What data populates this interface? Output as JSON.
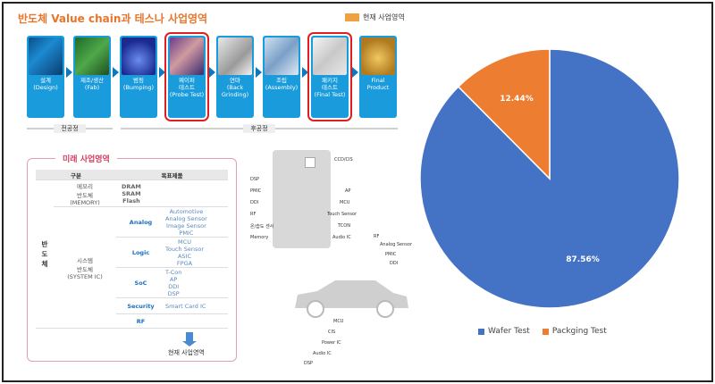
{
  "infographic": {
    "title": "반도체 Value chain과 테스나 사업영역",
    "legend_current": "현재 사업영역",
    "steps": [
      {
        "label": "설계\n(Design)",
        "icon": "design-image",
        "highlight": false
      },
      {
        "label": "제조/생산\n(Fab)",
        "icon": "fab-image",
        "highlight": false
      },
      {
        "label": "범핑\n(Bumping)",
        "icon": "bumping-image",
        "highlight": false
      },
      {
        "label": "웨이퍼\n테스트\n(Probe Test)",
        "icon": "wafer-image",
        "highlight": true
      },
      {
        "label": "연마\n(Back\nGrinding)",
        "icon": "grinding-image",
        "highlight": false
      },
      {
        "label": "조립\n(Assembly)",
        "icon": "assembly-image",
        "highlight": false
      },
      {
        "label": "패키지\n테스트\n(Final Test)",
        "icon": "package-image",
        "highlight": true
      },
      {
        "label": "Final\nProduct",
        "icon": "final-product-image",
        "highlight": false
      }
    ],
    "phase_front": "전공정",
    "phase_back": "후공정"
  },
  "future_business": {
    "title": "미래 사업영역",
    "col_category": "구분",
    "col_product": "목표제품",
    "side_label": "반\n도\n체",
    "memory_label": "메모리\n반도체\n(MEMORY)",
    "memory_products": "DRAM\nSRAM\nFlash",
    "system_label": "시스템\n반도체\n(SYSTEM IC)",
    "rows": [
      {
        "name": "Analog",
        "products": "Automotive\nAnalog Sensor\nImage Sensor\nPMIC"
      },
      {
        "name": "Logic",
        "products": "MCU\nTouch Sensor\nASIC\nFPGA"
      },
      {
        "name": "SoC",
        "products": "T-Con\nAP\nDDI\nDSP"
      },
      {
        "name": "Security",
        "products": "Smart Card IC"
      },
      {
        "name": "RF",
        "products": ""
      }
    ],
    "current_note": "현재 사업영역"
  },
  "chip_diagram": {
    "top_label": "CCD/CIS",
    "left_pins": [
      "DSP",
      "PMIC",
      "DDI",
      "RF",
      "온/습도 센서",
      "Memory"
    ],
    "right_pins": [
      "AP",
      "MCU",
      "Touch Sensor",
      "TCON",
      "Audio IC"
    ]
  },
  "car_diagram": {
    "labels": [
      "RF",
      "Analog Sensor",
      "PMIC",
      "DDI",
      "MCU",
      "CIS",
      "Power IC",
      "Audio IC",
      "DSP"
    ]
  },
  "chart_data": {
    "type": "pie",
    "title": "",
    "slices": [
      {
        "name": "Wafer Test",
        "value": 87.56,
        "label": "87.56%",
        "color": "#4472C4"
      },
      {
        "name": "Packging Test",
        "value": 12.44,
        "label": "12.44%",
        "color": "#ED7D31"
      }
    ],
    "start_angle_deg": 0,
    "direction": "clockwise",
    "legend_position": "bottom"
  }
}
